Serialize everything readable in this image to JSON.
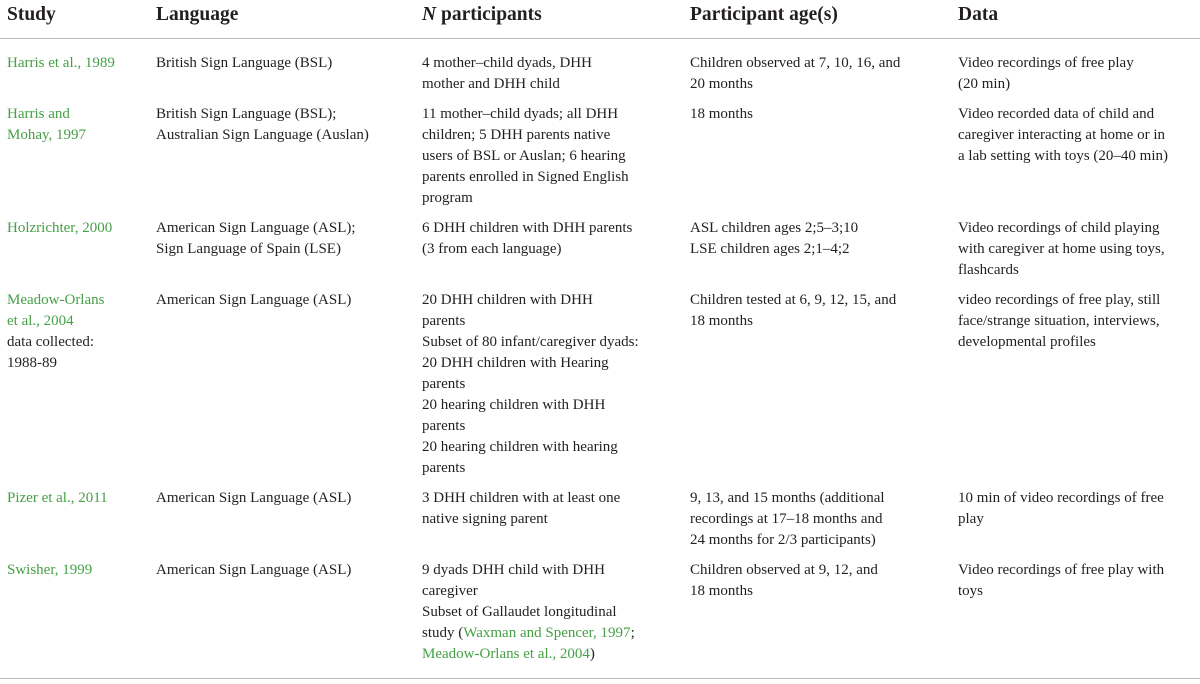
{
  "colors": {
    "link": "#45a046",
    "text": "#231f20",
    "rule": "#bdbdbd"
  },
  "headers": {
    "study": "Study",
    "language": "Language",
    "n_italic": "N",
    "n_rest": " participants",
    "age": "Participant age(s)",
    "data": "Data"
  },
  "rows": [
    {
      "study": [
        "Harris et al., 1989"
      ],
      "language": [
        "British Sign Language (BSL)"
      ],
      "participants": [
        "4 mother–child dyads, DHH",
        "mother and DHH child"
      ],
      "age": [
        "Children observed at 7, 10, 16, and",
        "20 months"
      ],
      "data": [
        "Video recordings of free play",
        "(20 min)"
      ]
    },
    {
      "study": [
        "Harris and",
        "Mohay, 1997"
      ],
      "language": [
        "British Sign Language (BSL);",
        "Australian Sign Language (Auslan)"
      ],
      "participants": [
        "11 mother–child dyads; all DHH",
        "children; 5 DHH parents native",
        "users of BSL or Auslan; 6 hearing",
        "parents enrolled in Signed English",
        "program"
      ],
      "age": [
        "18 months"
      ],
      "data": [
        "Video recorded data of child and",
        "caregiver interacting at home or in",
        "a lab setting with toys (20–40 min)"
      ]
    },
    {
      "study": [
        "Holzrichter, 2000"
      ],
      "language": [
        "American Sign Language (ASL);",
        "Sign Language of Spain (LSE)"
      ],
      "participants": [
        "6 DHH children with DHH parents",
        "(3 from each language)"
      ],
      "age": [
        "ASL children ages 2;5–3;10",
        "LSE children ages 2;1–4;2"
      ],
      "data": [
        "Video recordings of child playing",
        "with caregiver at home using toys,",
        "flashcards"
      ]
    },
    {
      "study": [
        "Meadow-Orlans",
        "et al., 2004"
      ],
      "study_note": [
        "data collected:",
        "1988-89"
      ],
      "language": [
        "American Sign Language (ASL)"
      ],
      "participants": [
        "20 DHH children with DHH",
        "parents",
        "Subset of 80 infant/caregiver dyads:",
        "20 DHH children with Hearing",
        "parents",
        "20 hearing children with DHH",
        "parents",
        "20 hearing children with hearing",
        "parents"
      ],
      "age": [
        "Children tested at 6, 9, 12, 15, and",
        "18 months"
      ],
      "data": [
        "video recordings of free play, still",
        "face/strange situation, interviews,",
        "developmental profiles"
      ]
    },
    {
      "study": [
        "Pizer et al., 2011"
      ],
      "language": [
        "American Sign Language (ASL)"
      ],
      "participants": [
        "3 DHH children with at least one",
        "native signing parent"
      ],
      "age": [
        "9, 13, and 15 months (additional",
        "recordings at 17–18 months and",
        "24 months for 2/3 participants)"
      ],
      "data": [
        "10 min of video recordings of free",
        "play"
      ]
    },
    {
      "study": [
        "Swisher, 1999"
      ],
      "language": [
        "American Sign Language (ASL)"
      ],
      "participants_lines": [
        "9 dyads DHH child with DHH",
        "caregiver",
        "Subset of Gallaudet longitudinal"
      ],
      "participants_line4_pre": "study (",
      "participants_line4_link": "Waxman and Spencer, 1997",
      "participants_line4_post": ";",
      "participants_line5_link": "Meadow-Orlans et al., 2004",
      "participants_line5_post": ")",
      "age": [
        "Children observed at 9, 12, and",
        "18 months"
      ],
      "data": [
        "Video recordings of free play with",
        "toys"
      ]
    }
  ]
}
